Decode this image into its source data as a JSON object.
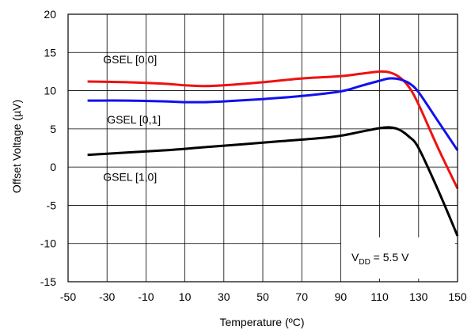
{
  "chart_data": {
    "type": "line",
    "xlabel": "Temperature (ºC)",
    "ylabel": "Offset Voltage (µV)",
    "xlim": [
      -50,
      150
    ],
    "ylim": [
      -15,
      20
    ],
    "x_ticks": [
      "-50",
      "-30",
      "-10",
      "10",
      "30",
      "50",
      "70",
      "90",
      "110",
      "130",
      "150"
    ],
    "y_ticks": [
      "20",
      "15",
      "10",
      "5",
      "0",
      "-5",
      "-10",
      "-15"
    ],
    "grid": true,
    "annotation": {
      "main": "V",
      "sub": "DD",
      "rest": " = 5.5 V"
    },
    "series": [
      {
        "name": "GSEL [0,0]",
        "color": "#ee1111",
        "x": [
          -40,
          -20,
          0,
          10,
          20,
          30,
          50,
          70,
          90,
          100,
          110,
          115,
          120,
          125,
          130,
          140,
          150
        ],
        "y": [
          11.2,
          11.1,
          10.9,
          10.7,
          10.6,
          10.7,
          11.1,
          11.6,
          11.9,
          12.2,
          12.5,
          12.4,
          11.8,
          10.5,
          8.2,
          2.5,
          -2.8
        ]
      },
      {
        "name": "GSEL [0,1]",
        "color": "#1111ee",
        "x": [
          -40,
          -20,
          0,
          10,
          20,
          30,
          50,
          70,
          90,
          100,
          110,
          115,
          120,
          125,
          130,
          140,
          150
        ],
        "y": [
          8.7,
          8.7,
          8.6,
          8.5,
          8.5,
          8.6,
          8.9,
          9.3,
          9.9,
          10.6,
          11.3,
          11.6,
          11.5,
          11.0,
          9.8,
          6.0,
          2.2
        ]
      },
      {
        "name": "GSEL [1,0]",
        "color": "#000000",
        "x": [
          -40,
          -20,
          0,
          20,
          40,
          60,
          80,
          90,
          100,
          110,
          115,
          120,
          125,
          130,
          140,
          150
        ],
        "y": [
          1.6,
          1.9,
          2.2,
          2.6,
          3.0,
          3.4,
          3.8,
          4.1,
          4.6,
          5.1,
          5.2,
          4.9,
          4.0,
          2.5,
          -3.0,
          -9.0
        ]
      }
    ],
    "labels": [
      {
        "text": "GSEL [0,0]",
        "x": -32,
        "y": 13.6
      },
      {
        "text": "GSEL [0,1]",
        "x": -30,
        "y": 5.7
      },
      {
        "text": "GSEL [1,0]",
        "x": -32,
        "y": -1.8
      }
    ]
  }
}
